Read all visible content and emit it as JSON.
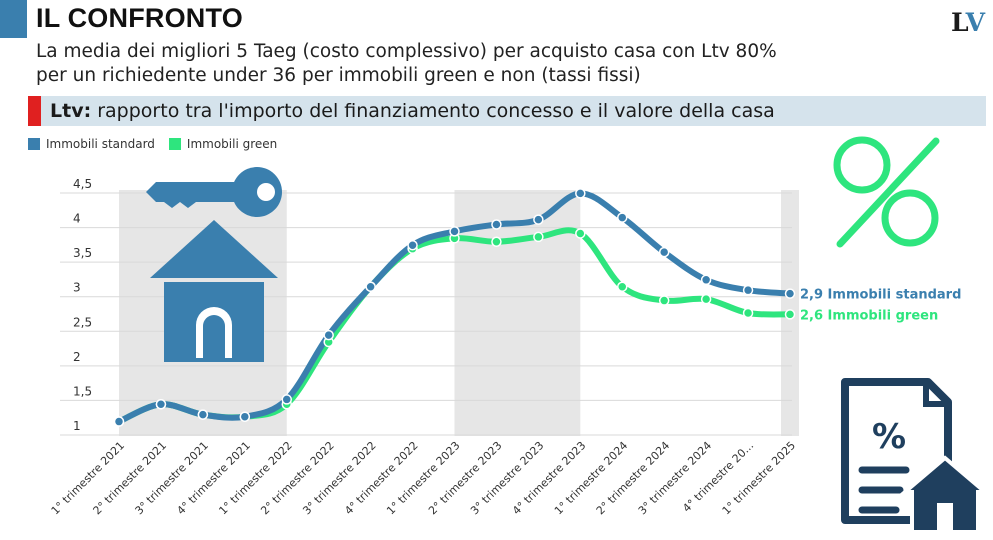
{
  "header": {
    "title": "IL CONFRONTO",
    "subtitle_line1": "La media dei migliori 5 Taeg (costo complessivo) per acquisto casa con Ltv 80%",
    "subtitle_line2": "per un richiedente under 36 per immobili green e non (tassi fissi)",
    "logo_l": "L",
    "logo_v": "V"
  },
  "ltv_note": {
    "term": "Ltv:",
    "definition": " rapporto tra l'importo del finanziamento concesso e il valore della casa"
  },
  "legend": {
    "standard": "Immobili standard",
    "green": "Immobili green"
  },
  "colors": {
    "standard": "#3a7fae",
    "green": "#2ee57e",
    "shade": "#e6e6e6",
    "accent_red": "#e02020",
    "note_bg": "#d5e3ec"
  },
  "icons": [
    "key-icon",
    "house-icon",
    "percent-icon",
    "document-house-icon"
  ],
  "chart_data": {
    "type": "line",
    "categories": [
      "1° trimestre 2021",
      "2° trimestre 2021",
      "3° trimestre 2021",
      "4° trimestre 2021",
      "1° trimestre 2022",
      "2° trimestre 2022",
      "3° trimestre 2022",
      "4° trimestre 2022",
      "1° trimestre 2023",
      "2° trimestre 2023",
      "3° trimestre 2023",
      "4° trimestre 2023",
      "1° trimestre 2024",
      "2° trimestre 2024",
      "3° trimestre 2024",
      "4° trimestre 20...",
      "1° trimestre 2025"
    ],
    "series": [
      {
        "name": "Immobili standard",
        "values": [
          1.05,
          1.3,
          1.15,
          1.12,
          1.37,
          2.3,
          3.0,
          3.6,
          3.8,
          3.9,
          3.97,
          4.35,
          4.0,
          3.5,
          3.1,
          2.95,
          2.9
        ],
        "end_label": "2,9 Immobili standard"
      },
      {
        "name": "Immobili green",
        "values": [
          1.05,
          1.3,
          1.15,
          1.12,
          1.3,
          2.2,
          3.0,
          3.55,
          3.7,
          3.65,
          3.72,
          3.77,
          3.0,
          2.8,
          2.82,
          2.62,
          2.6
        ],
        "end_label": "2,6 Immobili green"
      }
    ],
    "y_ticks": [
      "1",
      "1,5",
      "2",
      "2,5",
      "3",
      "3,5",
      "4",
      "4,5"
    ],
    "ylim": [
      1,
      4.5
    ],
    "shaded_ranges": [
      [
        0,
        4
      ],
      [
        8,
        11
      ],
      [
        16,
        16
      ]
    ],
    "grid": "horizontal",
    "legend_position": "top-left"
  }
}
